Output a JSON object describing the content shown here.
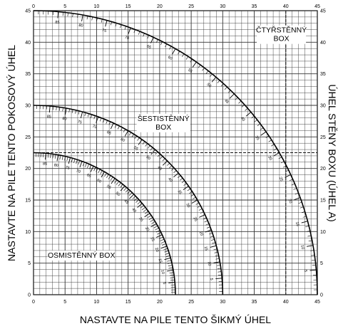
{
  "chart_data": {
    "type": "protractor-grid",
    "xlabel": "NASTAVTE NA PILE TENTO ŠIKMÝ ÚHEL",
    "ylabel": "NASTAVTE NA PILE TENTO POKOSOVÝ ÚHEL",
    "ylabel_right": "ÚHEL STĚNY BOXU (ÚHEL A)",
    "xlim": [
      0,
      45
    ],
    "ylim": [
      0,
      45
    ],
    "grid": true,
    "x_ticks": [
      0,
      5,
      10,
      15,
      20,
      25,
      30,
      35,
      40,
      45
    ],
    "y_ticks": [
      0,
      5,
      10,
      15,
      20,
      25,
      30,
      35,
      40,
      45
    ],
    "reference_lines": {
      "horizontal_y": 22.5,
      "vertical_x": 40
    },
    "boxes": [
      {
        "label": [
          "ČTYŘSTĚNNÝ",
          "BOX"
        ],
        "max_miter_angle": 45,
        "max_bevel_angle": 45,
        "scale_labels": [
          "85",
          "80",
          "75",
          "70",
          "65",
          "60",
          "55",
          "50",
          "45",
          "40",
          "35",
          "30",
          "25",
          "20",
          "15",
          "10",
          "5"
        ]
      },
      {
        "label": [
          "ŠESTISTĚNNÝ",
          "BOX"
        ],
        "max_miter_angle": 30,
        "max_bevel_angle": 30,
        "scale_labels": [
          "85",
          "80",
          "75",
          "70",
          "65",
          "60",
          "55",
          "50",
          "45",
          "40",
          "35",
          "30",
          "25",
          "20",
          "15",
          "10",
          "5"
        ]
      },
      {
        "label": [
          "OSMISTĚNNÝ BOX"
        ],
        "max_miter_angle": 22.5,
        "max_bevel_angle": 22.5,
        "scale_labels": [
          "85",
          "80",
          "75",
          "70",
          "65",
          "60",
          "55",
          "50",
          "45",
          "40",
          "35",
          "30",
          "25",
          "20",
          "15",
          "10",
          "5"
        ]
      }
    ]
  }
}
